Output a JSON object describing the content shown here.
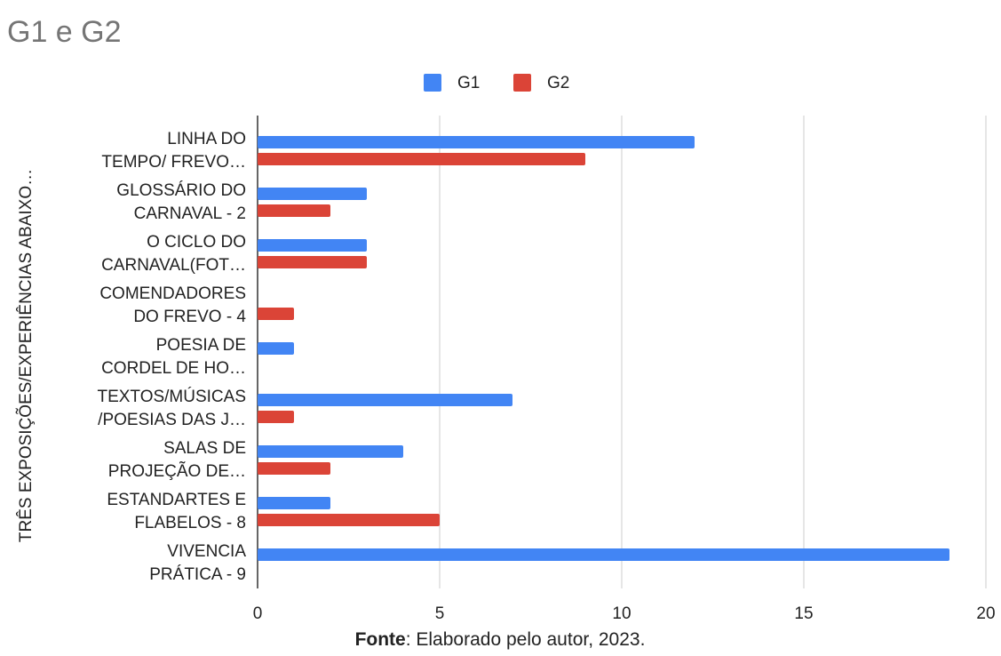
{
  "chart_data": {
    "type": "barh",
    "title": "G1 e G2",
    "y_axis_label": "TRÊS EXPOSIÇÕES/EXPERIÊNCIAS ABAIXO…",
    "categories": [
      [
        "LINHA DO",
        "TEMPO/ FREVO…"
      ],
      [
        "GLOSSÁRIO DO",
        "CARNAVAL - 2"
      ],
      [
        "O CICLO DO",
        "CARNAVAL(FOT…"
      ],
      [
        "COMENDADORES",
        "DO FREVO - 4"
      ],
      [
        "POESIA DE",
        "CORDEL DE HO…"
      ],
      [
        "TEXTOS/MÚSICAS",
        "/POESIAS DAS J…"
      ],
      [
        "SALAS DE",
        "PROJEÇÃO DE…"
      ],
      [
        "ESTANDARTES E",
        "FLABELOS - 8"
      ],
      [
        "VIVENCIA",
        "PRÁTICA - 9"
      ]
    ],
    "series": [
      {
        "name": "G1",
        "color": "#4285f4",
        "values": [
          12,
          3,
          3,
          0,
          1,
          7,
          4,
          2,
          19
        ]
      },
      {
        "name": "G2",
        "color": "#db4437",
        "values": [
          9,
          2,
          3,
          1,
          0,
          1,
          2,
          5,
          0
        ]
      }
    ],
    "xlim": [
      0,
      20
    ],
    "xticks": [
      0,
      5,
      10,
      15,
      20
    ],
    "grid": true,
    "legend": "top",
    "source_label": "Fonte",
    "source_text": ": Elaborado pelo autor, 2023."
  }
}
